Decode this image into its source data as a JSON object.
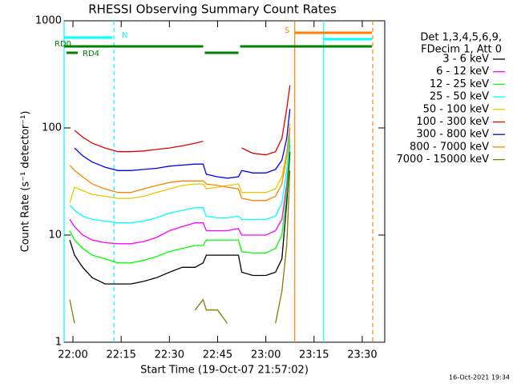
{
  "chart_data": {
    "type": "line",
    "title": "RHESSI Observing Summary Count Rates",
    "x_label": "Start Time (19-Oct-07 21:57:02)",
    "y_label": "Count Rate (s⁻¹ detector⁻¹)",
    "legend_header": [
      "Det 1,3,4,5,6,9,",
      "FDecim 1, Att 0"
    ],
    "footer": "16-Oct-2021 19:34",
    "log_y": true,
    "xlim": [
      -2.75,
      97
    ],
    "ylim": [
      1,
      1000
    ],
    "xticks": [
      {
        "value": 0,
        "label": "22:00"
      },
      {
        "value": 15,
        "label": "22:15"
      },
      {
        "value": 30,
        "label": "22:30"
      },
      {
        "value": 45,
        "label": "22:45"
      },
      {
        "value": 60,
        "label": "23:00"
      },
      {
        "value": 75,
        "label": "23:15"
      },
      {
        "value": 90,
        "label": "23:30"
      }
    ],
    "yticks": [
      1,
      10,
      100,
      1000
    ],
    "x": [
      -1,
      0.5,
      3,
      6,
      10,
      14,
      18,
      22,
      26,
      30,
      34,
      38,
      40.5,
      41.5,
      45,
      48,
      51.5,
      52.5,
      56,
      60,
      63,
      65,
      66.5,
      67.5
    ],
    "series": [
      {
        "name": "3 - 6 keV",
        "color": "#000000",
        "values": [
          9,
          6.5,
          5,
          4,
          3.5,
          3.5,
          3.5,
          3.7,
          4,
          4.5,
          5,
          5,
          5.5,
          6.5,
          6.5,
          6.5,
          6.5,
          4.5,
          4.2,
          4.2,
          4.5,
          6,
          20,
          60
        ]
      },
      {
        "name": "6 - 12 keV",
        "color": "#ff00ff",
        "values": [
          14,
          12,
          10,
          9,
          8.5,
          8.3,
          8.3,
          8.7,
          9.5,
          11,
          12,
          13,
          13,
          11,
          11,
          11,
          11.5,
          10,
          10,
          10,
          11,
          14,
          30,
          70
        ]
      },
      {
        "name": "12 - 25 keV",
        "color": "#00ff00",
        "values": [
          11,
          9,
          7.5,
          6.5,
          6,
          5.5,
          5.5,
          5.8,
          6.3,
          7,
          7.5,
          8,
          8,
          9,
          9,
          9,
          9,
          7,
          6.8,
          6.8,
          7.5,
          10,
          25,
          80
        ]
      },
      {
        "name": "25 - 50 keV",
        "color": "#00ffff",
        "values": [
          19,
          17,
          15,
          14,
          13.5,
          13,
          13,
          13.5,
          14.5,
          16,
          17,
          18,
          18,
          15,
          14.5,
          14.5,
          15,
          14,
          14,
          14,
          15,
          20,
          40,
          90
        ]
      },
      {
        "name": "50 - 100 keV",
        "color": "#e6c800",
        "values": [
          20,
          28,
          26,
          24,
          23,
          22,
          22,
          23,
          25,
          27,
          29,
          30,
          30,
          27,
          28,
          29,
          30,
          25,
          25,
          25,
          27,
          35,
          60,
          110
        ]
      },
      {
        "name": "100 - 300 keV",
        "color": "#e00000",
        "values": [
          null,
          95,
          82,
          72,
          65,
          60,
          60,
          61,
          63,
          65,
          68,
          72,
          75,
          null,
          null,
          null,
          null,
          65,
          58,
          56,
          60,
          80,
          150,
          250
        ]
      },
      {
        "name": "300 - 800 keV",
        "color": "#0000ff",
        "values": [
          null,
          65,
          55,
          48,
          43,
          40,
          40,
          41,
          42,
          44,
          45,
          46,
          46,
          37,
          35,
          34,
          35,
          40,
          38,
          38,
          41,
          50,
          80,
          150
        ]
      },
      {
        "name": "800 - 7000 keV",
        "color": "#ff8000",
        "values": [
          45,
          40,
          35,
          30,
          27,
          25,
          25,
          27,
          29,
          31,
          32,
          32,
          32,
          30,
          29,
          28,
          27,
          22,
          21,
          21,
          23,
          30,
          55,
          100
        ]
      },
      {
        "name": "7000 - 15000 keV",
        "color": "#808000",
        "values": [
          2.5,
          1.5,
          null,
          null,
          null,
          null,
          null,
          null,
          null,
          null,
          null,
          2,
          2.5,
          2,
          2,
          1.5,
          null,
          null,
          null,
          null,
          1.5,
          3,
          8,
          40
        ]
      }
    ],
    "flags": [
      {
        "label": "RD0",
        "color": "#008000",
        "start": -2.75,
        "end": 40.5
      },
      {
        "color": "#008000",
        "start": 41,
        "end": 51.5
      },
      {
        "color": "#008000",
        "start": 52,
        "end": 93
      },
      {
        "label": "RD4",
        "color": "#008000",
        "start": -2,
        "end": 1.5
      },
      {
        "label": "N",
        "color": "#00ffff",
        "start": -2.75,
        "end": 12.25
      },
      {
        "color": "#00ffff",
        "start": 78,
        "end": 93
      },
      {
        "label": "S",
        "color": "#ff8000",
        "start": 69,
        "end": 93
      }
    ],
    "vlines": [
      {
        "x": -2.75,
        "color": "#00ffff",
        "dashed": false
      },
      {
        "x": 12.75,
        "color": "#00ffff",
        "dashed": true
      },
      {
        "x": 69,
        "color": "#ff8000",
        "dashed": false
      },
      {
        "x": 78,
        "color": "#00ffff",
        "dashed": false
      },
      {
        "x": 93.25,
        "color": "#ff8000",
        "dashed": true
      }
    ]
  }
}
